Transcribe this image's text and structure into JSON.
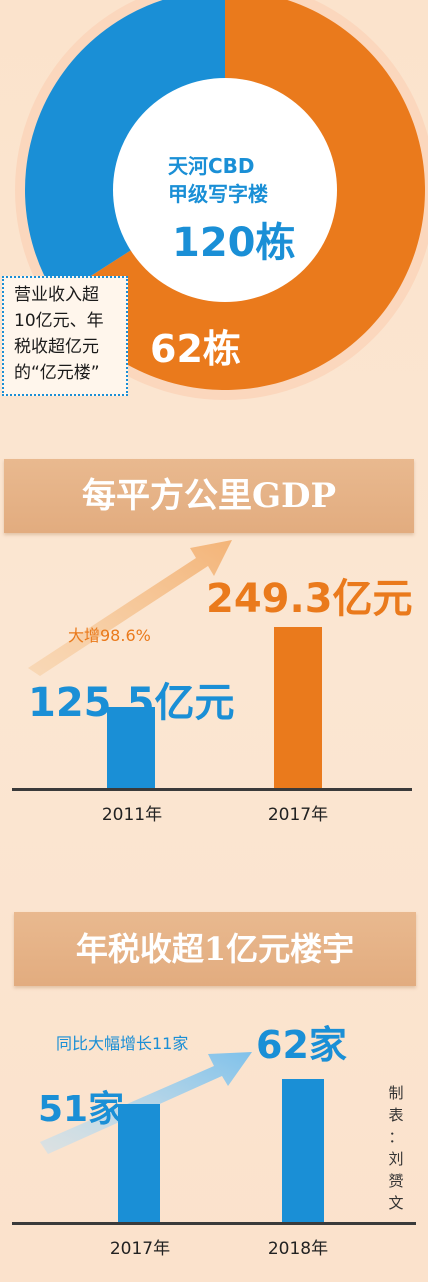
{
  "colors": {
    "blue": "#1a8fd6",
    "orange": "#ea7a1c",
    "banner": "#e4ae82",
    "text": "#222222"
  },
  "donut": {
    "center_line1": "天河CBD",
    "center_line2": "甲级写字楼",
    "center_value": "120栋",
    "segment_value": "62栋",
    "callout": [
      "营业收入超",
      "10亿元、年",
      "税收超亿元",
      "的“亿元楼”"
    ]
  },
  "gdp_section": {
    "title": "每平方公里GDP",
    "note": "大增98.6%"
  },
  "tax_section": {
    "title": "年税收超1亿元楼宇",
    "note": "同比大幅增长11家"
  },
  "credit": [
    "制",
    "表",
    "：",
    "刘",
    "赟",
    "文"
  ],
  "chart_data": [
    {
      "type": "pie",
      "labels": [
        "天河CBD甲级写字楼",
        "营业收入超10亿元、年税收超亿元的“亿元楼”"
      ],
      "values": [
        120,
        62
      ],
      "colors": [
        "#ea7a1c",
        "#1a8fd6"
      ],
      "title": "天河CBD甲级写字楼",
      "total_label": "120栋"
    },
    {
      "type": "bar",
      "title": "每平方公里GDP",
      "categories": [
        "2011年",
        "2017年"
      ],
      "values": [
        125.5,
        249.3
      ],
      "value_labels": [
        "125.5亿元",
        "249.3亿元"
      ],
      "colors": [
        "#1a8fd6",
        "#ea7a1c"
      ],
      "annotation": "大增98.6%"
    },
    {
      "type": "bar",
      "title": "年税收超1亿元楼宇",
      "categories": [
        "2017年",
        "2018年"
      ],
      "values": [
        51,
        62
      ],
      "value_labels": [
        "51家",
        "62家"
      ],
      "colors": [
        "#1a8fd6",
        "#1a8fd6"
      ],
      "annotation": "同比大幅增长11家"
    }
  ]
}
